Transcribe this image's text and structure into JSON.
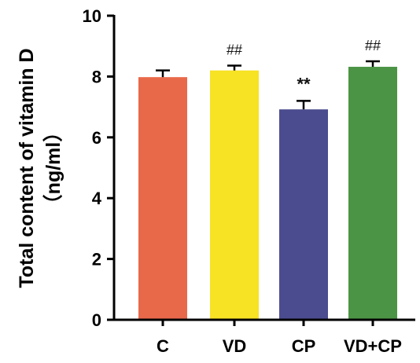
{
  "chart_data": {
    "type": "bar",
    "categories": [
      "C",
      "VD",
      "CP",
      "VD+CP"
    ],
    "values": [
      7.98,
      8.2,
      6.92,
      8.32
    ],
    "errors": [
      0.22,
      0.16,
      0.28,
      0.18
    ],
    "annotations": [
      "",
      "##",
      "**",
      "##"
    ],
    "colors": [
      "#e8694a",
      "#f7e224",
      "#4b4c8f",
      "#4c9445"
    ],
    "ylabel_line1": "Total content of vitamin D",
    "ylabel_line2": "（ng/ml）",
    "ylim": [
      0,
      10
    ],
    "yticks": [
      "0",
      "2",
      "4",
      "6",
      "8",
      "10"
    ],
    "grid": false
  }
}
